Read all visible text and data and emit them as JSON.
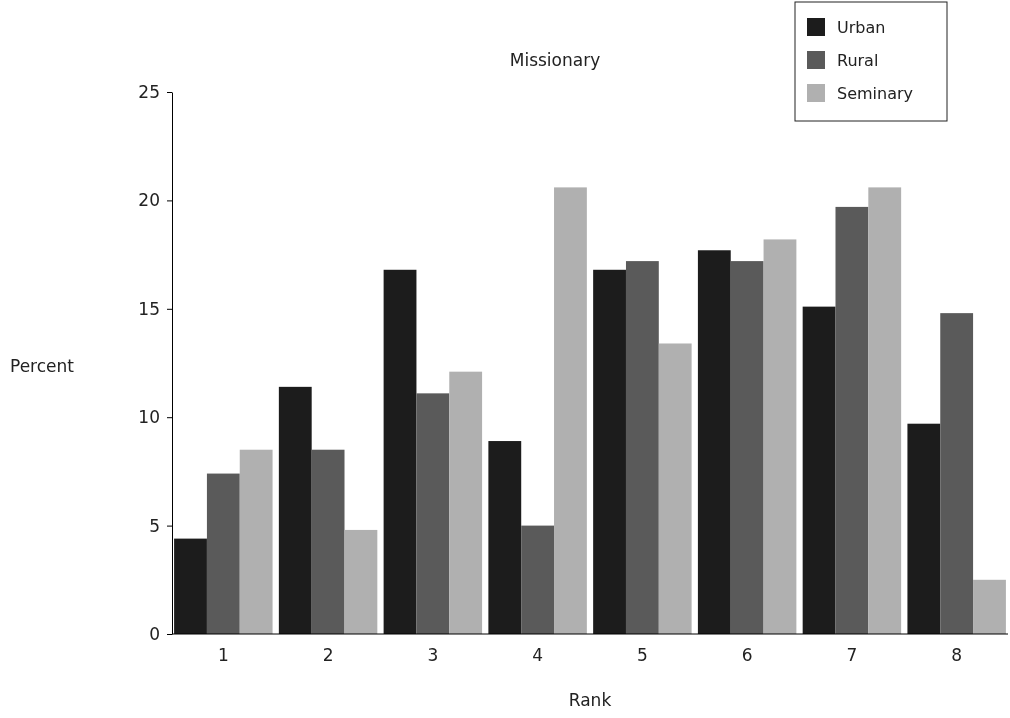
{
  "chart_data": {
    "type": "bar",
    "title": "Missionary",
    "xlabel": "Rank",
    "ylabel": "Percent",
    "categories": [
      "1",
      "2",
      "3",
      "4",
      "5",
      "6",
      "7",
      "8"
    ],
    "series": [
      {
        "name": "Urban",
        "color": "#1c1c1c",
        "values": [
          4.4,
          11.4,
          16.8,
          8.9,
          16.8,
          17.7,
          15.1,
          9.7
        ]
      },
      {
        "name": "Rural",
        "color": "#5a5a5a",
        "values": [
          7.4,
          8.5,
          11.1,
          5.0,
          17.2,
          17.2,
          19.7,
          14.8
        ]
      },
      {
        "name": "Seminary",
        "color": "#b0b0b0",
        "values": [
          8.5,
          4.8,
          12.1,
          20.6,
          13.4,
          18.2,
          20.6,
          2.5
        ]
      }
    ],
    "ylim": [
      0,
      25
    ],
    "yticks": [
      0,
      5,
      10,
      15,
      20,
      25
    ],
    "grid": false,
    "legend": "top right"
  }
}
